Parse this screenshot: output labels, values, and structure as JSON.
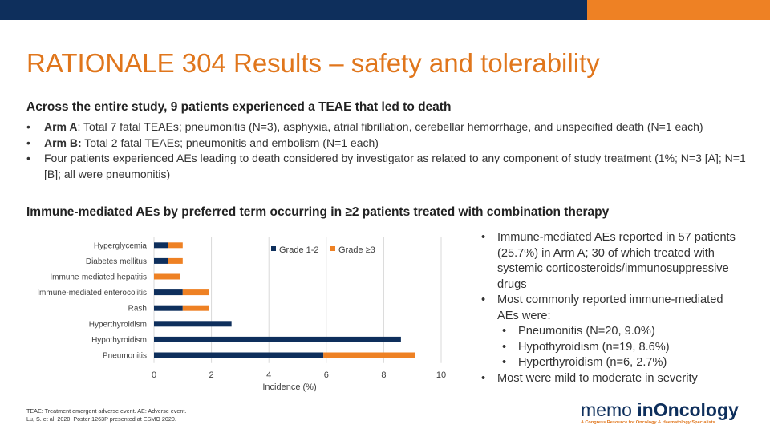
{
  "colors": {
    "navy": "#0e2f5c",
    "orange": "#ee8124",
    "title": "#e0761c",
    "grid": "#d9d9d9"
  },
  "slide": {
    "title": "RATIONALE 304 Results – safety and tolerability",
    "section1": {
      "heading": "Across the entire study, 9 patients experienced a TEAE that led to death",
      "bullets": [
        {
          "marker": "•",
          "bold": "Arm A",
          "text": ": Total 7 fatal TEAEs; pneumonitis (N=3), asphyxia, atrial fibrillation, cerebellar hemorrhage, and unspecified death (N=1 each)"
        },
        {
          "marker": "•",
          "bold": "Arm B:",
          "text": " Total 2 fatal TEAEs; pneumonitis and embolism (N=1 each)"
        },
        {
          "marker": "•",
          "bold": "",
          "text": "Four patients experienced AEs leading to death considered by investigator as related to any component of study treatment (1%; N=3 [A]; N=1 [B]; all were pneumonitis)"
        }
      ]
    },
    "section2": {
      "heading": "Immune-mediated AEs by preferred term occurring in ≥2 patients treated with combination therapy"
    },
    "right_bullets": [
      {
        "marker": "•",
        "text": "Immune-mediated AEs reported in 57 patients (25.7%) in Arm A; 30 of which treated with systemic corticosteroids/immunosuppressive drugs",
        "sub": []
      },
      {
        "marker": "•",
        "text": "Most commonly reported immune-mediated AEs were:",
        "sub": [
          {
            "marker": "•",
            "text": "Pneumonitis (N=20, 9.0%)"
          },
          {
            "marker": "•",
            "text": "Hypothyroidism (n=19, 8.6%)"
          },
          {
            "marker": "•",
            "text": "Hyperthyroidism (n=6, 2.7%)"
          }
        ]
      },
      {
        "marker": "•",
        "text": "Most were mild to moderate in severity",
        "sub": []
      }
    ],
    "footnote": {
      "line1": "TEAE: Treatment emergent adverse event. AE: Adverse event.",
      "line2": "Lu, S. et al. 2020. Poster 1263P presented at ESMO 2020."
    },
    "logo": {
      "part1": "memo ",
      "part2": "in",
      "part3": "Oncology",
      "tagline": "A Congress Resource for Oncology & Haematology Specialists"
    }
  },
  "chart_data": {
    "type": "bar",
    "orientation": "horizontal",
    "stacked": true,
    "categories": [
      "Hyperglycemia",
      "Diabetes mellitus",
      "Immune-mediated hepatitis",
      "Immune-mediated enterocolitis",
      "Rash",
      "Hyperthyroidism",
      "Hypothyroidism",
      "Pneumonitis"
    ],
    "series": [
      {
        "name": "Grade 1-2",
        "color": "#0e2f5c",
        "values": [
          0.5,
          0.5,
          0,
          1,
          1,
          2.7,
          8.6,
          5.9
        ]
      },
      {
        "name": "Grade ≥3",
        "color": "#ee8124",
        "values": [
          0.5,
          0.5,
          0.9,
          0.9,
          0.9,
          0,
          0,
          3.2
        ]
      }
    ],
    "xlabel": "Incidence (%)",
    "xlim": [
      0,
      10
    ],
    "xticks": [
      "0",
      "2",
      "4",
      "6",
      "8",
      "10"
    ],
    "grid": true,
    "legend": "top-right"
  }
}
